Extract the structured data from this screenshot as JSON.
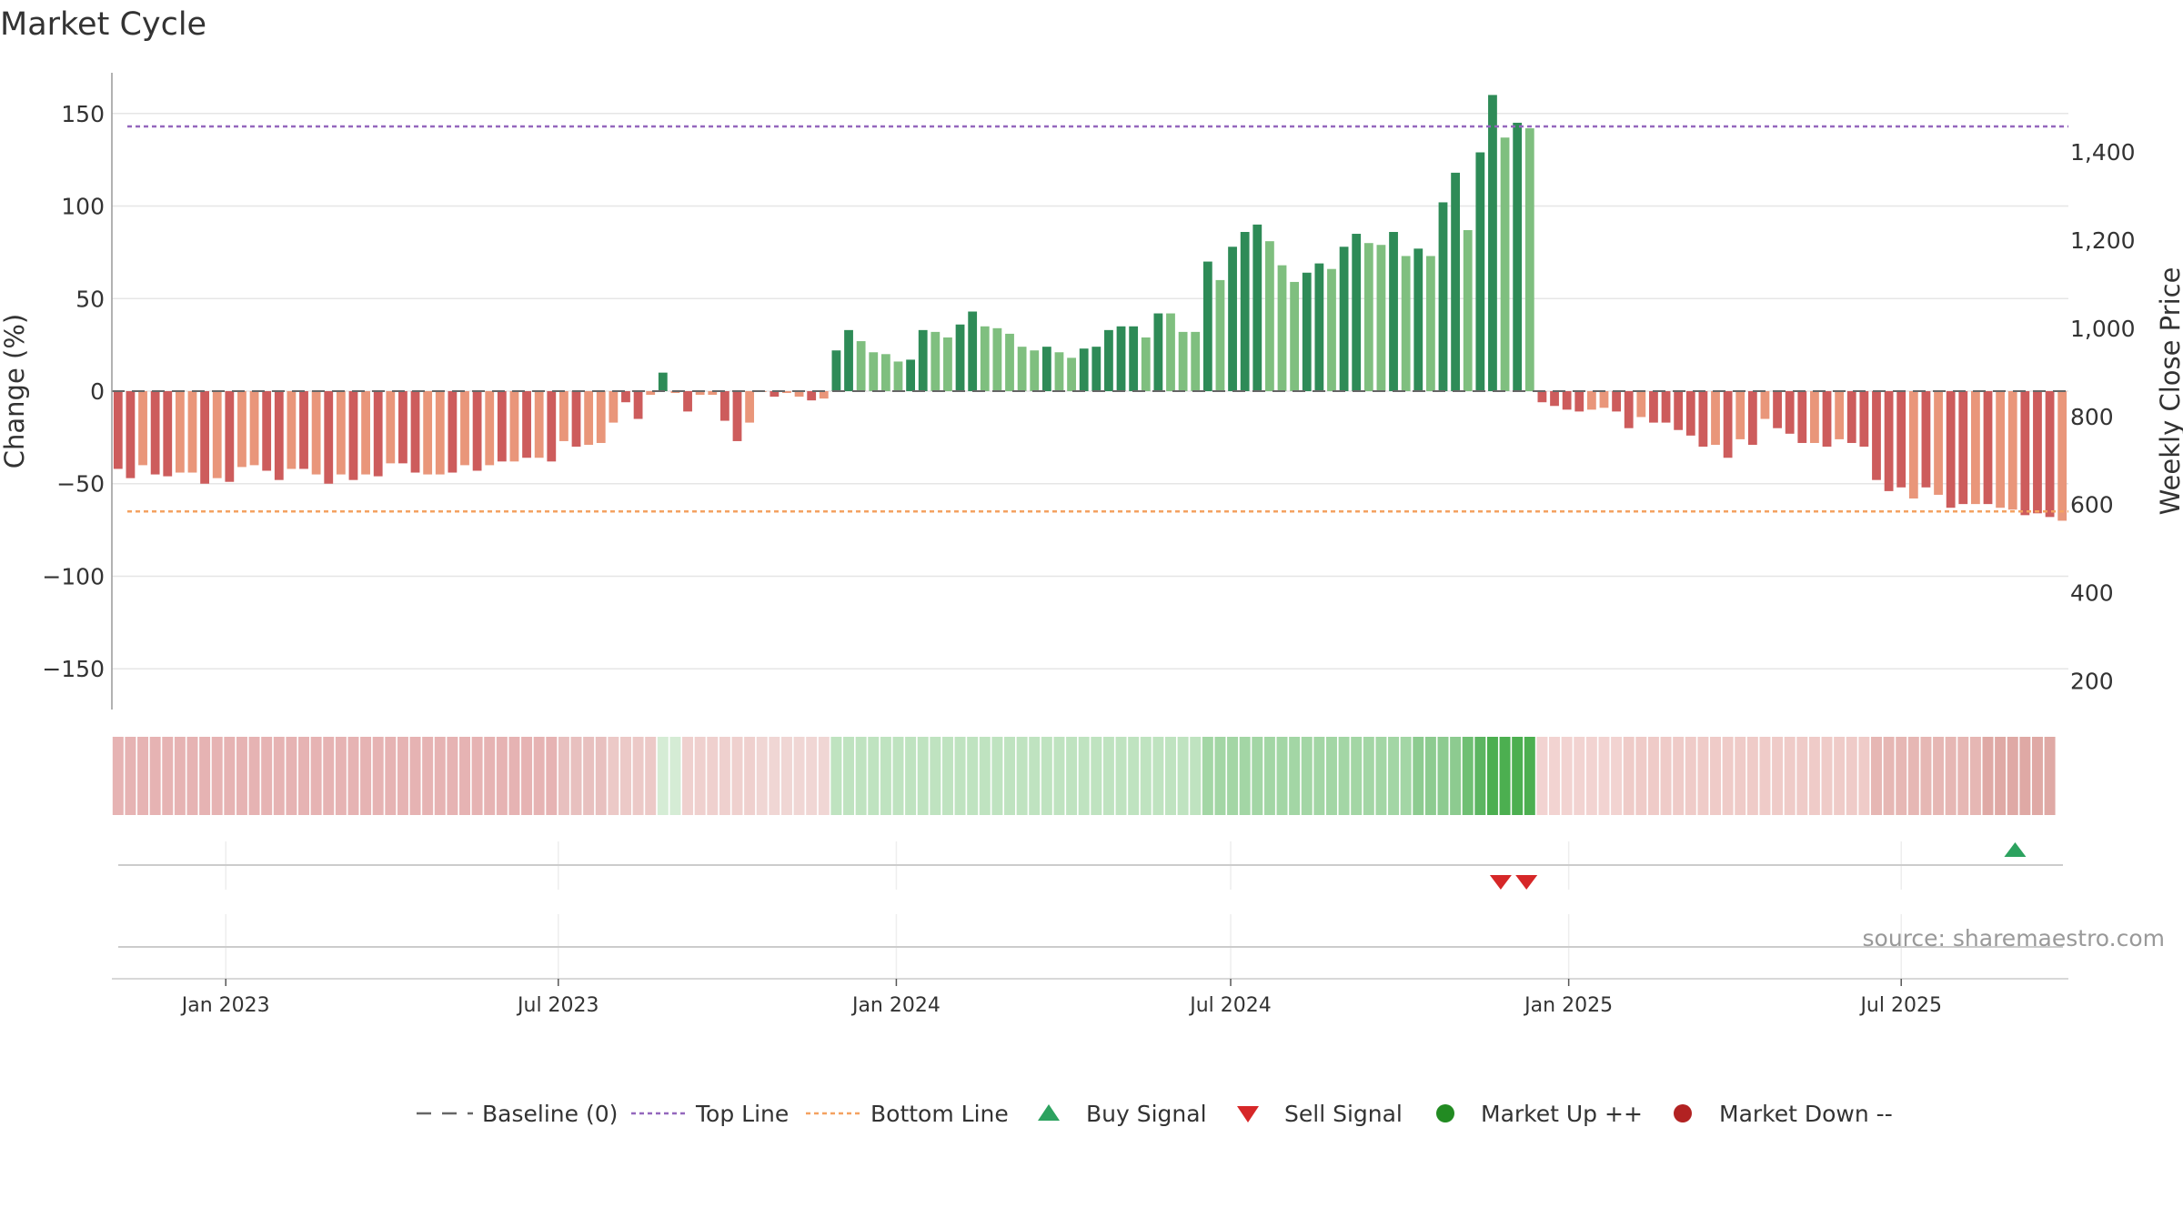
{
  "chart_data": {
    "type": "bar",
    "title": "Market Cycle",
    "ylabel_left": "Change (%)",
    "ylabel_right": "Weekly Close Price",
    "ylim_left": [
      -172,
      172
    ],
    "ylim_right": [
      135,
      1580
    ],
    "left_ticks": [
      150,
      100,
      50,
      0,
      -50,
      -100,
      -150
    ],
    "left_tick_labels": [
      "150",
      "100",
      "50",
      "0",
      "−50",
      "−100",
      "−150"
    ],
    "right_ticks": [
      1400,
      1200,
      1000,
      800,
      600,
      400,
      200
    ],
    "right_tick_labels": [
      "1,400",
      "1,200",
      "1,000",
      "800",
      "600",
      "400",
      "200"
    ],
    "x_start": "2022-10-31",
    "x_end": "2025-09-30",
    "x_ticks": [
      "2023-01-01",
      "2023-07-01",
      "2024-01-01",
      "2024-07-01",
      "2025-01-01",
      "2025-07-01"
    ],
    "x_tick_labels": [
      "Jan 2023",
      "Jul 2023",
      "Jan 2024",
      "Jul 2024",
      "Jan 2025",
      "Jul 2025"
    ],
    "top_line": 143,
    "bottom_line": -65,
    "values": [
      -42,
      -47,
      -40,
      -45,
      -46,
      -44,
      -44,
      -50,
      -47,
      -49,
      -41,
      -40,
      -43,
      -48,
      -42,
      -42,
      -45,
      -50,
      -45,
      -48,
      -45,
      -46,
      -39,
      -39,
      -44,
      -45,
      -45,
      -44,
      -40,
      -43,
      -40,
      -38,
      -38,
      -36,
      -36,
      -38,
      -27,
      -30,
      -29,
      -28,
      -17,
      -6,
      -15,
      -2,
      10,
      -1,
      -11,
      -2,
      -2,
      -16,
      -27,
      -17,
      0,
      -3,
      -1,
      -3,
      -5,
      -4,
      22,
      33,
      27,
      21,
      20,
      16,
      17,
      33,
      32,
      29,
      36,
      43,
      35,
      34,
      31,
      24,
      22,
      24,
      21,
      18,
      23,
      24,
      33,
      35,
      35,
      29,
      42,
      42,
      32,
      32,
      70,
      60,
      78,
      86,
      90,
      81,
      68,
      59,
      64,
      69,
      66,
      78,
      85,
      80,
      79,
      86,
      73,
      77,
      73,
      102,
      118,
      87,
      129,
      160,
      137,
      145,
      142,
      -6,
      -8,
      -10,
      -11,
      -10,
      -9,
      -11,
      -20,
      -14,
      -17,
      -17,
      -21,
      -24,
      -30,
      -29,
      -36,
      -26,
      -29,
      -15,
      -20,
      -23,
      -28,
      -28,
      -30,
      -26,
      -28,
      -30,
      -48,
      -54,
      -52,
      -58,
      -52,
      -56,
      -63,
      -61,
      -61,
      -61,
      -63,
      -64,
      -67,
      -66,
      -68,
      -70
    ],
    "bar_colors": [
      "#cd5c5c",
      "#cd5c5c",
      "#e9967a",
      "#cd5c5c",
      "#cd5c5c",
      "#e9967a",
      "#e9967a",
      "#cd5c5c",
      "#e9967a",
      "#cd5c5c",
      "#e9967a",
      "#e9967a",
      "#cd5c5c",
      "#cd5c5c",
      "#e9967a",
      "#cd5c5c",
      "#e9967a",
      "#cd5c5c",
      "#e9967a",
      "#cd5c5c",
      "#e9967a",
      "#cd5c5c",
      "#e9967a",
      "#cd5c5c",
      "#cd5c5c",
      "#e9967a",
      "#e9967a",
      "#cd5c5c",
      "#e9967a",
      "#cd5c5c",
      "#e9967a",
      "#cd5c5c",
      "#e9967a",
      "#cd5c5c",
      "#e9967a",
      "#cd5c5c",
      "#e9967a",
      "#cd5c5c",
      "#e9967a",
      "#e9967a",
      "#e9967a",
      "#cd5c5c",
      "#cd5c5c",
      "#e9967a",
      "#2e8b57",
      "#e9967a",
      "#cd5c5c",
      "#e9967a",
      "#e9967a",
      "#cd5c5c",
      "#cd5c5c",
      "#e9967a",
      "#e9967a",
      "#cd5c5c",
      "#e9967a",
      "#e9967a",
      "#cd5c5c",
      "#e9967a",
      "#2e8b57",
      "#2e8b57",
      "#7fbf7f",
      "#7fbf7f",
      "#7fbf7f",
      "#7fbf7f",
      "#2e8b57",
      "#2e8b57",
      "#7fbf7f",
      "#7fbf7f",
      "#2e8b57",
      "#2e8b57",
      "#7fbf7f",
      "#7fbf7f",
      "#7fbf7f",
      "#7fbf7f",
      "#7fbf7f",
      "#2e8b57",
      "#7fbf7f",
      "#7fbf7f",
      "#2e8b57",
      "#2e8b57",
      "#2e8b57",
      "#2e8b57",
      "#2e8b57",
      "#7fbf7f",
      "#2e8b57",
      "#7fbf7f",
      "#7fbf7f",
      "#7fbf7f",
      "#2e8b57",
      "#7fbf7f",
      "#2e8b57",
      "#2e8b57",
      "#2e8b57",
      "#7fbf7f",
      "#7fbf7f",
      "#7fbf7f",
      "#2e8b57",
      "#2e8b57",
      "#7fbf7f",
      "#2e8b57",
      "#2e8b57",
      "#7fbf7f",
      "#7fbf7f",
      "#2e8b57",
      "#7fbf7f",
      "#2e8b57",
      "#7fbf7f",
      "#2e8b57",
      "#2e8b57",
      "#7fbf7f",
      "#2e8b57",
      "#2e8b57",
      "#7fbf7f",
      "#2e8b57",
      "#7fbf7f",
      "#cd5c5c",
      "#cd5c5c",
      "#cd5c5c",
      "#cd5c5c",
      "#e9967a",
      "#e9967a",
      "#cd5c5c",
      "#cd5c5c",
      "#e9967a",
      "#cd5c5c",
      "#cd5c5c",
      "#cd5c5c",
      "#cd5c5c",
      "#cd5c5c",
      "#e9967a",
      "#cd5c5c",
      "#e9967a",
      "#cd5c5c",
      "#e9967a",
      "#cd5c5c",
      "#cd5c5c",
      "#cd5c5c",
      "#e9967a",
      "#cd5c5c",
      "#e9967a",
      "#cd5c5c",
      "#cd5c5c",
      "#cd5c5c",
      "#cd5c5c",
      "#cd5c5c",
      "#e9967a",
      "#cd5c5c",
      "#e9967a",
      "#cd5c5c",
      "#cd5c5c",
      "#e9967a",
      "#cd5c5c",
      "#e9967a",
      "#e9967a",
      "#cd5c5c",
      "#cd5c5c",
      "#cd5c5c",
      "#e9967a",
      "#cd5c5c",
      "#cd5c5c"
    ],
    "heat_colors": [
      "#e6b3b3",
      "#e6b3b3",
      "#e6b3b3",
      "#e6b3b3",
      "#e6b3b3",
      "#e6b3b3",
      "#e6b3b3",
      "#e6b3b3",
      "#e6b3b3",
      "#e6b3b3",
      "#e6b3b3",
      "#e6b3b3",
      "#e6b3b3",
      "#e6b3b3",
      "#e6b3b3",
      "#e6b3b3",
      "#e6b3b3",
      "#e6b3b3",
      "#e6b3b3",
      "#e6b3b3",
      "#e6b3b3",
      "#e6b3b3",
      "#e6b3b3",
      "#e6b3b3",
      "#e6b3b3",
      "#e6b3b3",
      "#e6b3b3",
      "#e6b3b3",
      "#e6b3b3",
      "#e6b3b3",
      "#e6b3b3",
      "#e6b3b3",
      "#e6b3b3",
      "#e6b3b3",
      "#e6b3b3",
      "#e6b3b3",
      "#e8c0bf",
      "#e8c0bf",
      "#e8c0bf",
      "#e8c0bf",
      "#ecc9c7",
      "#ecc9c7",
      "#ecc9c7",
      "#ecc9c7",
      "#d5ecd5",
      "#d5ecd5",
      "#efd0ce",
      "#efd0ce",
      "#efd0ce",
      "#efd0ce",
      "#efd0ce",
      "#efd0ce",
      "#f0d6d4",
      "#f0d6d4",
      "#f0d6d4",
      "#f0d6d4",
      "#f0d6d4",
      "#f0d6d4",
      "#bfe3c0",
      "#bfe3c0",
      "#bfe3c0",
      "#bfe3c0",
      "#bfe3c0",
      "#bfe3c0",
      "#bfe3c0",
      "#bfe3c0",
      "#bfe3c0",
      "#bfe3c0",
      "#bfe3c0",
      "#bfe3c0",
      "#bfe3c0",
      "#bfe3c0",
      "#bfe3c0",
      "#bfe3c0",
      "#bfe3c0",
      "#bfe3c0",
      "#bfe3c0",
      "#bfe3c0",
      "#bfe3c0",
      "#bfe3c0",
      "#bfe3c0",
      "#bfe3c0",
      "#bfe3c0",
      "#bfe3c0",
      "#bfe3c0",
      "#bfe3c0",
      "#bfe3c0",
      "#bfe3c0",
      "#a3d6a5",
      "#a3d6a5",
      "#a3d6a5",
      "#a3d6a5",
      "#a3d6a5",
      "#a3d6a5",
      "#a3d6a5",
      "#a3d6a5",
      "#a3d6a5",
      "#a3d6a5",
      "#a3d6a5",
      "#a3d6a5",
      "#a3d6a5",
      "#a3d6a5",
      "#a3d6a5",
      "#a3d6a5",
      "#a3d6a5",
      "#8dcb90",
      "#8dcb90",
      "#8dcb90",
      "#8dcb90",
      "#6fbf73",
      "#5cb561",
      "#4caf50",
      "#4caf50",
      "#4caf50",
      "#4caf50",
      "#f2d3d1",
      "#f2d3d1",
      "#f2d3d1",
      "#f2d3d1",
      "#f2d3d1",
      "#f2d3d1",
      "#f2d3d1",
      "#efcbc8",
      "#efcbc8",
      "#efcbc8",
      "#efcbc8",
      "#efcbc8",
      "#efcbc8",
      "#efcbc8",
      "#efcbc8",
      "#efcbc8",
      "#efcbc8",
      "#efcbc8",
      "#efcbc8",
      "#efcbc8",
      "#efcbc8",
      "#efcbc8",
      "#efcbc8",
      "#efcbc8",
      "#efcbc8",
      "#efcbc8",
      "#efcbc8",
      "#e6b7b4",
      "#e6b7b4",
      "#e6b7b4",
      "#e6b7b4",
      "#e6b7b4",
      "#e6b7b4",
      "#e6b7b4",
      "#e6b7b4",
      "#e6b7b4",
      "#dfa9a5",
      "#dfa9a5",
      "#dfa9a5",
      "#dfa9a5",
      "#dfa9a5",
      "#dfa9a5"
    ],
    "buy_signals": [
      "2025-09-01"
    ],
    "sell_signals": [
      "2024-11-25",
      "2024-12-09"
    ],
    "legend": [
      "Baseline (0)",
      "Top Line",
      "Bottom Line",
      "Buy Signal",
      "Sell Signal",
      "Market Up ++",
      "Market Down --"
    ],
    "legend_placement": "bottom-center",
    "grid": true
  },
  "source_text": "source: sharemaestro.com",
  "colors": {
    "top_line": "#9467bd",
    "bottom_line": "#f4a261",
    "buy": "#2ca25f",
    "sell": "#d62728",
    "market_up": "#228b22",
    "market_down": "#b22222",
    "baseline": "#666666"
  }
}
